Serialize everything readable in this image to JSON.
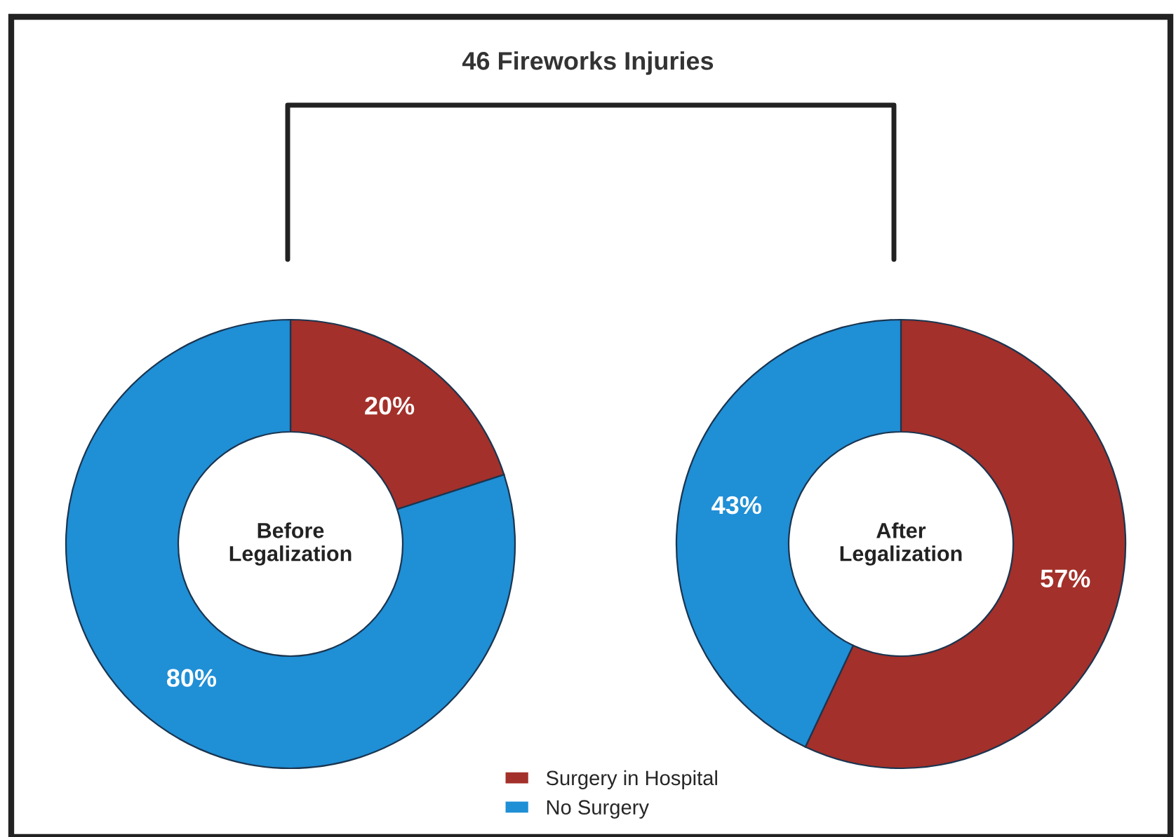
{
  "chart_data": [
    {
      "type": "donut",
      "title": "46 Fireworks Injuries",
      "categories": [
        "Surgery in Hospital",
        "No Surgery"
      ],
      "values": [
        20,
        80
      ],
      "colors": [
        "#a3302a",
        "#1f8fd6"
      ],
      "value_labels": [
        "20%",
        "80%"
      ],
      "annotations": [
        "Before\nLegalization"
      ],
      "legend": "bottom"
    },
    {
      "type": "donut",
      "categories": [
        null,
        null
      ],
      "values": [
        57,
        43
      ],
      "colors": [
        "#a3302a",
        "#1f8fd6"
      ],
      "value_labels": [
        "57%",
        "43%"
      ],
      "annotations": [
        "After\nLegalization"
      ],
      "legend": false
    }
  ]
}
